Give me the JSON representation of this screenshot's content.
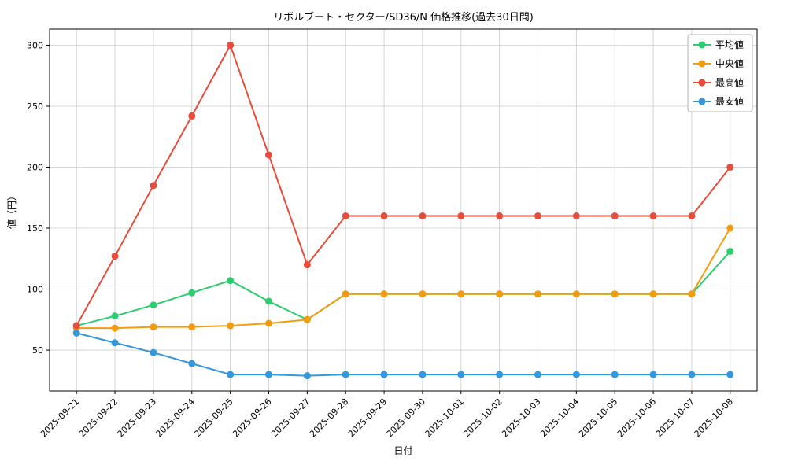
{
  "chart_data": {
    "type": "line",
    "title": "リボルブート・セクター/SD36/N 価格推移(過去30日間)",
    "xlabel": "日付",
    "ylabel": "値（円）",
    "categories": [
      "2025-09-21",
      "2025-09-22",
      "2025-09-23",
      "2025-09-24",
      "2025-09-25",
      "2025-09-26",
      "2025-09-27",
      "2025-09-28",
      "2025-09-29",
      "2025-09-30",
      "2025-10-01",
      "2025-10-02",
      "2025-10-03",
      "2025-10-04",
      "2025-10-05",
      "2025-10-06",
      "2025-10-07",
      "2025-10-08"
    ],
    "series": [
      {
        "key": "average",
        "name": "平均値",
        "color": "#2ecc71",
        "values": [
          70,
          78,
          87,
          97,
          107,
          90,
          75,
          96,
          96,
          96,
          96,
          96,
          96,
          96,
          96,
          96,
          96,
          131
        ]
      },
      {
        "key": "median",
        "name": "中央値",
        "color": "#f39c12",
        "values": [
          68,
          68,
          69,
          69,
          70,
          72,
          75,
          96,
          96,
          96,
          96,
          96,
          96,
          96,
          96,
          96,
          96,
          150
        ]
      },
      {
        "key": "max",
        "name": "最高値",
        "color": "#e74c3c",
        "values": [
          70,
          127,
          185,
          242,
          300,
          210,
          120,
          160,
          160,
          160,
          160,
          160,
          160,
          160,
          160,
          160,
          160,
          200
        ]
      },
      {
        "key": "min",
        "name": "最安値",
        "color": "#3498db",
        "values": [
          64,
          56,
          48,
          39,
          30,
          30,
          29,
          30,
          30,
          30,
          30,
          30,
          30,
          30,
          30,
          30,
          30,
          30
        ]
      }
    ],
    "yticks": [
      50,
      100,
      150,
      200,
      250,
      300
    ],
    "ylim": [
      16.5,
      313.2
    ],
    "grid": true,
    "legend_position": "upper right"
  }
}
